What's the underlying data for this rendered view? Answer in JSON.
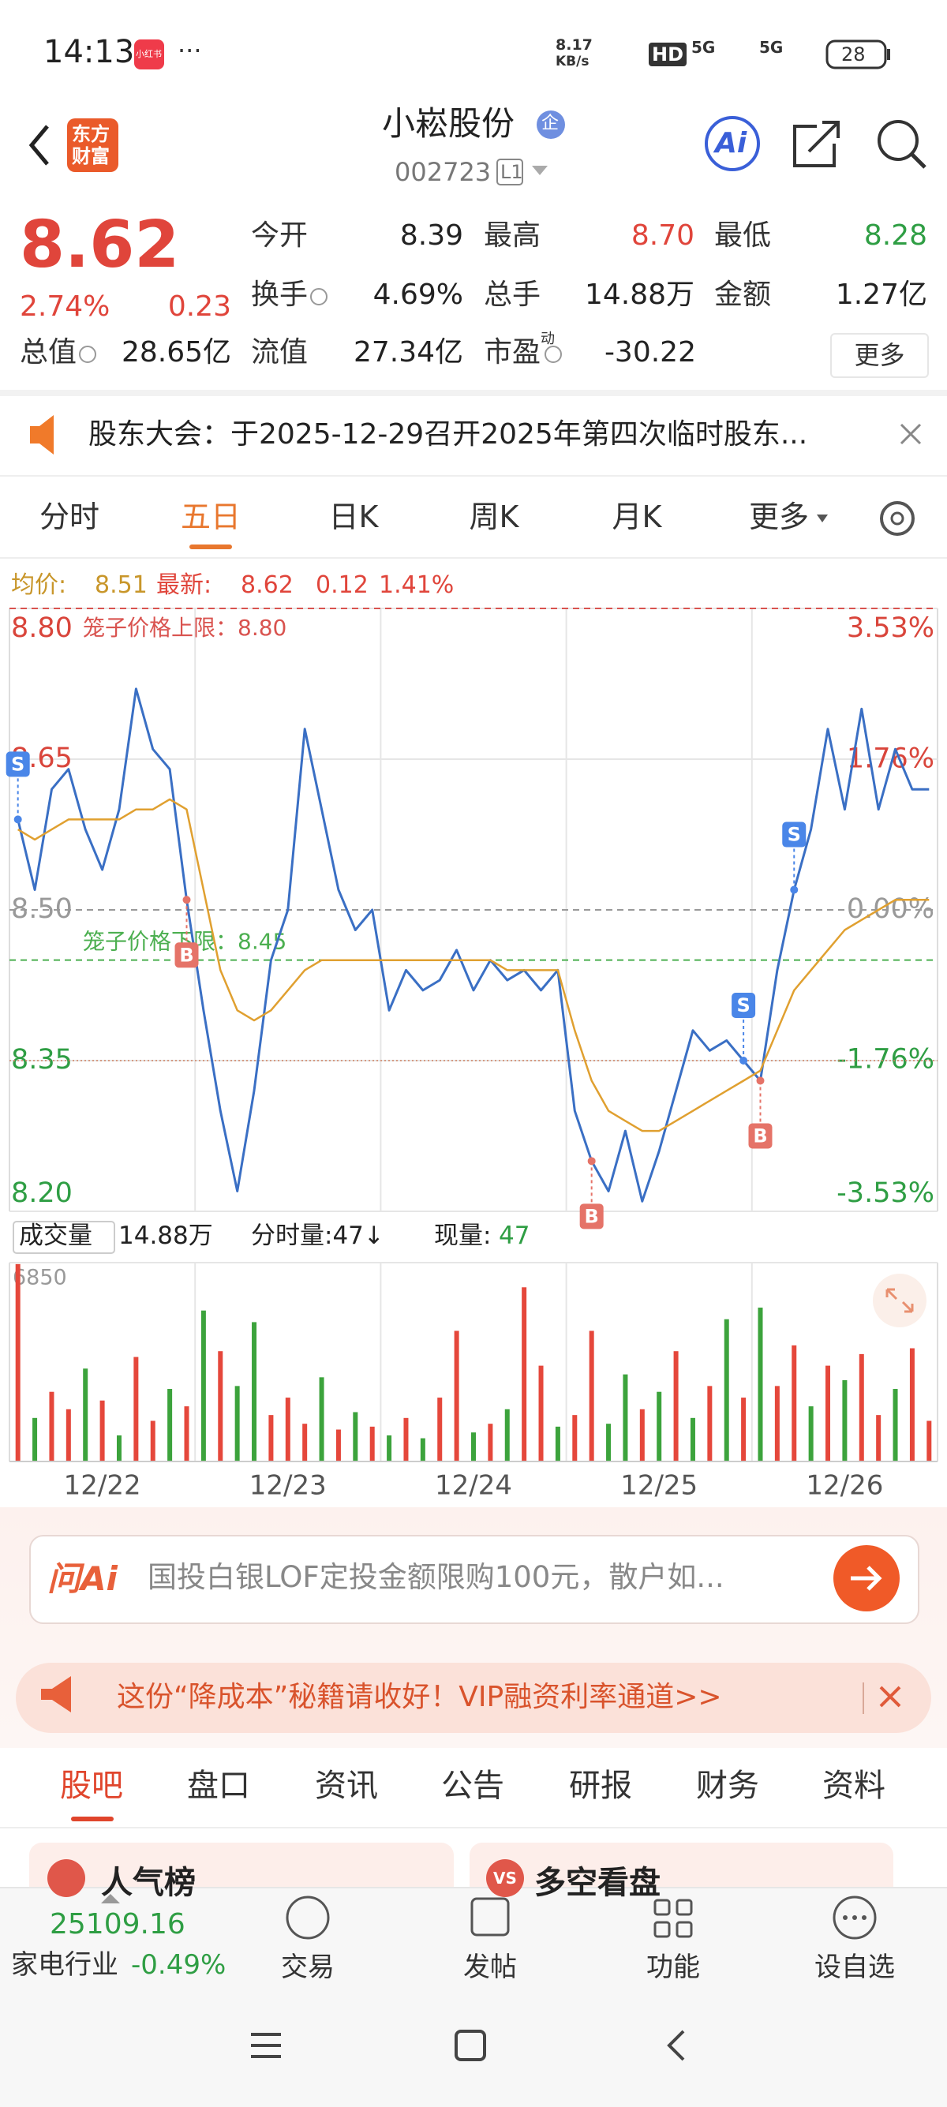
{
  "status_bar": {
    "time": "14:13",
    "badge": "小红书",
    "more": "···",
    "net_speed": "8.17",
    "net_unit": "KB/s",
    "hd": "HD",
    "signal_1": "5G",
    "signal_2": "5G",
    "battery": "28"
  },
  "header": {
    "logo_top": "东方",
    "logo_bottom": "财富",
    "title": "小崧股份",
    "badge": "企",
    "code": "002723",
    "level": "L1",
    "ai": "Ai"
  },
  "quote": {
    "price": "8.62",
    "change_pct": "2.74%",
    "change": "0.23",
    "stats": [
      [
        {
          "label": "今开",
          "value": "8.39",
          "color": "#222222"
        },
        {
          "label": "最高",
          "value": "8.70",
          "color": "#e0453b"
        },
        {
          "label": "最低",
          "value": "8.28",
          "color": "#2f9e44"
        }
      ],
      [
        {
          "label": "换手",
          "value": "4.69%",
          "color": "#222222",
          "info": true
        },
        {
          "label": "总手",
          "value": "14.88万",
          "color": "#222222"
        },
        {
          "label": "金额",
          "value": "1.27亿",
          "color": "#222222"
        }
      ],
      [
        {
          "label": "总值",
          "value": "28.65亿",
          "color": "#222222",
          "info": true
        },
        {
          "label": "流值",
          "value": "27.34亿",
          "color": "#222222"
        },
        {
          "label": "市盈",
          "sup": "动",
          "value": "-30.22",
          "color": "#222222",
          "info": true
        }
      ]
    ],
    "more": "更多"
  },
  "notice": "股东大会：于2025-12-29召开2025年第四次临时股东...",
  "tabs": [
    "分时",
    "五日",
    "日K",
    "周K",
    "月K",
    "更多"
  ],
  "active_tab": 1,
  "legend": {
    "avg_label": "均价:",
    "avg": "8.51",
    "latest_label": "最新:",
    "latest": "8.62",
    "change": "0.12",
    "pct": "1.41%"
  },
  "chart_data": [
    {
      "type": "line",
      "ylim": [
        8.2,
        8.8
      ],
      "yticks": [
        {
          "value": 8.8,
          "label": "8.80"
        },
        8.65,
        {
          "value": 8.5,
          "label": "8.50"
        },
        8.35,
        {
          "value": 8.2,
          "label": "8.20"
        }
      ],
      "y2lim": [
        -3.53,
        3.53
      ],
      "y2ticks": [
        {
          "value": 3.53,
          "label": "3.53%"
        },
        {
          "value": 1.76,
          "label": "1.76%"
        },
        {
          "value": 0,
          "label": "0.00%"
        },
        {
          "value": -1.76,
          "label": "-1.76%"
        },
        {
          "value": -3.53,
          "label": "-3.53%"
        }
      ],
      "days": [
        "12/22",
        "12/23",
        "12/24",
        "12/25",
        "12/26"
      ],
      "series": [
        {
          "color": "#3a6fc4",
          "values": [
            8.59,
            8.52,
            8.62,
            8.64,
            8.58,
            8.54,
            8.6,
            8.72,
            8.66,
            8.64,
            8.51,
            8.4,
            8.3,
            8.22,
            8.32,
            8.45,
            8.5,
            8.68,
            8.6,
            8.52,
            8.48,
            8.5,
            8.4,
            8.44,
            8.42,
            8.43,
            8.46,
            8.42,
            8.45,
            8.43,
            8.44,
            8.42,
            8.44,
            8.3,
            8.25,
            8.22,
            8.28,
            8.21,
            8.26,
            8.32,
            8.38,
            8.36,
            8.37,
            8.35,
            8.33,
            8.44,
            8.52,
            8.58,
            8.68,
            8.6,
            8.7,
            8.6,
            8.66,
            8.62,
            8.62
          ]
        },
        {
          "color": "#e0a030",
          "values": [
            8.58,
            8.57,
            8.58,
            8.59,
            8.59,
            8.59,
            8.59,
            8.6,
            8.6,
            8.61,
            8.6,
            8.52,
            8.44,
            8.4,
            8.39,
            8.4,
            8.42,
            8.44,
            8.45,
            8.45,
            8.45,
            8.45,
            8.45,
            8.45,
            8.45,
            8.45,
            8.45,
            8.45,
            8.45,
            8.44,
            8.44,
            8.44,
            8.44,
            8.38,
            8.33,
            8.3,
            8.29,
            8.28,
            8.28,
            8.29,
            8.3,
            8.31,
            8.32,
            8.33,
            8.34,
            8.38,
            8.42,
            8.44,
            8.46,
            8.48,
            8.49,
            8.5,
            8.51,
            8.51,
            8.51
          ]
        }
      ],
      "reference_lines": [
        {
          "label": "笼子价格上限：8.80",
          "value": 8.8,
          "color": "#d9534f"
        },
        {
          "label": "笼子价格下限：8.45",
          "value": 8.45,
          "color": "#4caf50"
        }
      ],
      "markers": [
        {
          "label": "S",
          "index": 0,
          "value": 8.59,
          "color": "#4a86e8"
        },
        {
          "label": "B",
          "index": 10,
          "value": 8.51,
          "color": "#e57368"
        },
        {
          "label": "B",
          "index": 34,
          "value": 8.25,
          "color": "#e57368"
        },
        {
          "label": "S",
          "index": 43,
          "value": 8.35,
          "color": "#4a86e8"
        },
        {
          "label": "B",
          "index": 44,
          "value": 8.33,
          "color": "#e57368"
        },
        {
          "label": "S",
          "index": 46,
          "value": 8.52,
          "color": "#4a86e8"
        }
      ]
    },
    {
      "type": "bar",
      "ylim": [
        0,
        6850
      ],
      "yticks": [
        6850
      ],
      "values": [
        6800,
        1500,
        2400,
        1800,
        3200,
        2100,
        900,
        3600,
        1400,
        2500,
        1900,
        5200,
        3800,
        2600,
        4800,
        1600,
        2200,
        1300,
        2900,
        1100,
        1700,
        1200,
        900,
        1500,
        800,
        2200,
        4500,
        1000,
        1300,
        1800,
        6000,
        3300,
        1200,
        1600,
        4500,
        1300,
        3000,
        1800,
        2400,
        3800,
        1500,
        2600,
        4900,
        2200,
        5300,
        2600,
        4000,
        1900,
        3300,
        2800,
        3700,
        1600,
        2500,
        3900,
        1400
      ],
      "colors": [
        "#e5473b",
        "#3ca33c",
        "#e5473b",
        "#e5473b",
        "#3ca33c",
        "#e5473b",
        "#3ca33c",
        "#e5473b",
        "#e5473b",
        "#3ca33c",
        "#e5473b",
        "#3ca33c",
        "#e5473b",
        "#3ca33c",
        "#3ca33c",
        "#e5473b",
        "#e5473b",
        "#e5473b",
        "#3ca33c",
        "#e5473b",
        "#3ca33c",
        "#e5473b",
        "#3ca33c",
        "#e5473b",
        "#3ca33c",
        "#e5473b",
        "#e5473b",
        "#3ca33c",
        "#e5473b",
        "#3ca33c",
        "#e5473b",
        "#e5473b",
        "#3ca33c",
        "#e5473b",
        "#e5473b",
        "#3ca33c",
        "#3ca33c",
        "#e5473b",
        "#3ca33c",
        "#e5473b",
        "#3ca33c",
        "#e5473b",
        "#3ca33c",
        "#e5473b",
        "#3ca33c",
        "#e5473b",
        "#e5473b",
        "#3ca33c",
        "#e5473b",
        "#3ca33c",
        "#e5473b",
        "#e5473b",
        "#3ca33c",
        "#e5473b",
        "#e5473b"
      ]
    }
  ],
  "volume_header": {
    "label": "成交量",
    "total": "14.88万",
    "period": "分时量:47↓",
    "current_label": "现量:",
    "current": "47"
  },
  "ai_box": {
    "brand": "问Ai",
    "placeholder": "国投白银LOF定投金额限购100元，散户如..."
  },
  "banner": "这份“降成本”秘籍请收好！VIP融资利率通道>>",
  "sub_tabs": [
    "股吧",
    "盘口",
    "资讯",
    "公告",
    "研报",
    "财务",
    "资料"
  ],
  "active_sub_tab": 0,
  "cards": [
    {
      "icon": "",
      "title": "人气榜"
    },
    {
      "icon": "VS",
      "title": "多空看盘"
    }
  ],
  "bottom": {
    "index_value": "25109.16",
    "index_name": "家电行业",
    "index_change": "-0.49%",
    "actions": [
      "交易",
      "发帖",
      "功能",
      "设自选"
    ]
  }
}
